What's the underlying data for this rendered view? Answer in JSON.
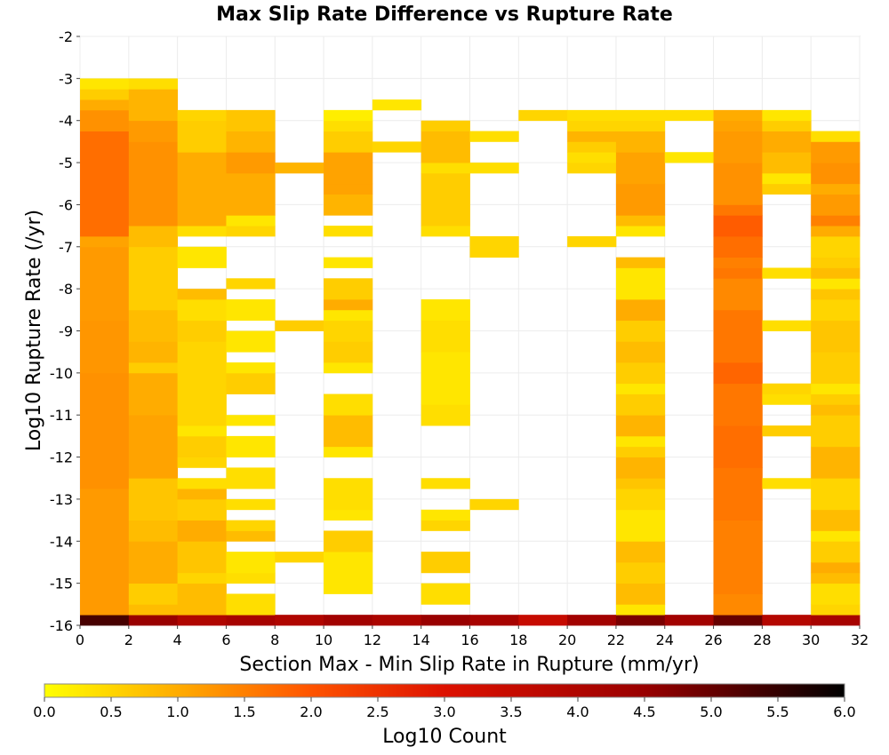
{
  "chart_data": {
    "type": "heatmap",
    "title": "Max Slip Rate Difference vs Rupture Rate",
    "xlabel": "Section Max - Min Slip Rate in Rupture (mm/yr)",
    "ylabel": "Log10 Rupture Rate (/yr)",
    "xlim": [
      0,
      32
    ],
    "ylim": [
      -16,
      -2
    ],
    "x_bin_width": 2,
    "y_bin_height": 0.25,
    "x_ticks": [
      "0",
      "2",
      "4",
      "6",
      "8",
      "10",
      "12",
      "14",
      "16",
      "18",
      "20",
      "22",
      "24",
      "26",
      "28",
      "30",
      "32"
    ],
    "y_ticks": [
      "-2",
      "-3",
      "-4",
      "-5",
      "-6",
      "-7",
      "-8",
      "-9",
      "-10",
      "-11",
      "-12",
      "-13",
      "-14",
      "-15",
      "-16"
    ],
    "grid": true,
    "colorbar": {
      "label": "Log10 Count",
      "range": [
        0,
        6
      ],
      "ticks": [
        "0.0",
        "0.5",
        "1.0",
        "1.5",
        "2.0",
        "2.5",
        "3.0",
        "3.5",
        "4.0",
        "4.5",
        "5.0",
        "5.5",
        "6.0"
      ],
      "colormap": [
        "#ffff00",
        "#ffa500",
        "#ff5500",
        "#dd1100",
        "#990000",
        "#000000"
      ]
    },
    "cells_format": "each column: x bin start (mm/yr) then runs of [y_start, y_end, log10_count]",
    "columns": [
      {
        "x": 0,
        "runs": [
          [
            -16,
            -15.75,
            5.3
          ],
          [
            -15.75,
            -13.75,
            1.2
          ],
          [
            -13.75,
            -12.75,
            1.2
          ],
          [
            -12.75,
            -10,
            1.3
          ],
          [
            -10,
            -8.75,
            1.25
          ],
          [
            -8.75,
            -7,
            1.2
          ],
          [
            -7,
            -6.75,
            1.1
          ],
          [
            -6.75,
            -4.25,
            1.7
          ],
          [
            -4.25,
            -3.75,
            1.3
          ],
          [
            -3.75,
            -3.5,
            1.0
          ],
          [
            -3.5,
            -3.25,
            0.6
          ],
          [
            -3.25,
            -3,
            0.3
          ]
        ]
      },
      {
        "x": 2,
        "runs": [
          [
            -16,
            -15.75,
            4.5
          ],
          [
            -15.75,
            -15.5,
            0.8
          ],
          [
            -15.5,
            -15,
            0.6
          ],
          [
            -15,
            -14,
            1.0
          ],
          [
            -14,
            -13.5,
            0.8
          ],
          [
            -13.5,
            -12.5,
            0.7
          ],
          [
            -12.5,
            -11,
            1.1
          ],
          [
            -11,
            -10,
            1.0
          ],
          [
            -10,
            -9.75,
            0.6
          ],
          [
            -9.75,
            -9.25,
            0.9
          ],
          [
            -9.25,
            -8.5,
            0.8
          ],
          [
            -8.5,
            -7,
            0.6
          ],
          [
            -7,
            -6.5,
            0.8
          ],
          [
            -6.5,
            -4.5,
            1.3
          ],
          [
            -4.5,
            -4,
            1.2
          ],
          [
            -4,
            -3.25,
            0.9
          ],
          [
            -3.25,
            -3,
            0.4
          ]
        ]
      },
      {
        "x": 4,
        "runs": [
          [
            -16,
            -15.75,
            4.0
          ],
          [
            -15.75,
            -15,
            0.8
          ],
          [
            -15,
            -14.75,
            0.5
          ],
          [
            -14.75,
            -14,
            0.7
          ],
          [
            -14,
            -13.5,
            1.0
          ],
          [
            -13.5,
            -13,
            0.6
          ],
          [
            -13,
            -12.75,
            0.9
          ],
          [
            -12.75,
            -12.5,
            0.4
          ],
          [
            -12.25,
            -12,
            0.5
          ],
          [
            -12,
            -11.5,
            0.6
          ],
          [
            -11.5,
            -11.25,
            0.3
          ],
          [
            -11.25,
            -10,
            0.5
          ],
          [
            -10,
            -9.25,
            0.5
          ],
          [
            -9.25,
            -8.75,
            0.6
          ],
          [
            -8.75,
            -8.25,
            0.4
          ],
          [
            -8.25,
            -8,
            0.8
          ],
          [
            -7.5,
            -7,
            0.3
          ],
          [
            -6.75,
            -6.5,
            0.4
          ],
          [
            -6.5,
            -4.75,
            1.0
          ],
          [
            -4.75,
            -4,
            0.6
          ],
          [
            -4,
            -3.75,
            0.5
          ]
        ]
      },
      {
        "x": 6,
        "runs": [
          [
            -16,
            -15.75,
            4.2
          ],
          [
            -15.75,
            -15.25,
            0.4
          ],
          [
            -15,
            -14.75,
            0.4
          ],
          [
            -14.75,
            -14.25,
            0.3
          ],
          [
            -14,
            -13.75,
            0.8
          ],
          [
            -13.75,
            -13.5,
            0.5
          ],
          [
            -13.25,
            -13,
            0.4
          ],
          [
            -12.75,
            -12.25,
            0.4
          ],
          [
            -12,
            -11.5,
            0.3
          ],
          [
            -11.25,
            -11,
            0.3
          ],
          [
            -10.5,
            -10,
            0.6
          ],
          [
            -10,
            -9.75,
            0.3
          ],
          [
            -9.5,
            -9,
            0.3
          ],
          [
            -8.75,
            -8.25,
            0.3
          ],
          [
            -8,
            -7.75,
            0.5
          ],
          [
            -6.75,
            -6.5,
            0.5
          ],
          [
            -6.5,
            -6.25,
            0.3
          ],
          [
            -6.25,
            -5.25,
            1.0
          ],
          [
            -5.25,
            -4.75,
            1.2
          ],
          [
            -4.75,
            -4.25,
            0.9
          ],
          [
            -4.25,
            -3.75,
            0.7
          ]
        ]
      },
      {
        "x": 8,
        "runs": [
          [
            -16,
            -15.75,
            4.0
          ],
          [
            -14.5,
            -14.25,
            0.5
          ],
          [
            -9,
            -8.75,
            0.6
          ],
          [
            -5.25,
            -5,
            0.9
          ]
        ]
      },
      {
        "x": 10,
        "runs": [
          [
            -16,
            -15.75,
            4.3
          ],
          [
            -15.25,
            -14.25,
            0.3
          ],
          [
            -14.25,
            -13.75,
            0.6
          ],
          [
            -13.5,
            -13.25,
            0.3
          ],
          [
            -13.25,
            -12.5,
            0.4
          ],
          [
            -12,
            -11.75,
            0.3
          ],
          [
            -11.75,
            -11,
            0.8
          ],
          [
            -11,
            -10.5,
            0.4
          ],
          [
            -10,
            -9.75,
            0.3
          ],
          [
            -9.75,
            -9.25,
            0.6
          ],
          [
            -9.25,
            -8.75,
            0.5
          ],
          [
            -8.75,
            -8.5,
            0.3
          ],
          [
            -8.5,
            -8.25,
            1.0
          ],
          [
            -8.25,
            -7.75,
            0.6
          ],
          [
            -7.5,
            -7.25,
            0.3
          ],
          [
            -6.75,
            -6.5,
            0.4
          ],
          [
            -6.25,
            -5.75,
            0.9
          ],
          [
            -5.75,
            -5.5,
            1.1
          ],
          [
            -5.5,
            -4.75,
            1.1
          ],
          [
            -4.75,
            -4.25,
            0.6
          ],
          [
            -4.25,
            -4,
            0.4
          ],
          [
            -4,
            -3.75,
            0.2
          ]
        ]
      },
      {
        "x": 12,
        "runs": [
          [
            -16,
            -15.75,
            4.1
          ],
          [
            -4.75,
            -4.5,
            0.5
          ],
          [
            -3.75,
            -3.5,
            0.3
          ]
        ]
      },
      {
        "x": 14,
        "runs": [
          [
            -16,
            -15.75,
            4.5
          ],
          [
            -15.5,
            -15,
            0.4
          ],
          [
            -14.75,
            -14.25,
            0.6
          ],
          [
            -13.75,
            -13.5,
            0.5
          ],
          [
            -13.5,
            -13.25,
            0.3
          ],
          [
            -12.75,
            -12.5,
            0.4
          ],
          [
            -11.25,
            -10.75,
            0.4
          ],
          [
            -10.75,
            -9.5,
            0.3
          ],
          [
            -9.5,
            -8.75,
            0.4
          ],
          [
            -8.75,
            -8.25,
            0.3
          ],
          [
            -6.75,
            -6.5,
            0.4
          ],
          [
            -6.5,
            -5.25,
            0.6
          ],
          [
            -5.25,
            -5,
            0.4
          ],
          [
            -5,
            -4.25,
            0.8
          ],
          [
            -4.25,
            -4,
            0.6
          ]
        ]
      },
      {
        "x": 16,
        "runs": [
          [
            -16,
            -15.75,
            4.2
          ],
          [
            -13.25,
            -13,
            0.5
          ],
          [
            -7.25,
            -6.75,
            0.5
          ],
          [
            -5.25,
            -5,
            0.4
          ],
          [
            -4.5,
            -4.25,
            0.4
          ]
        ]
      },
      {
        "x": 18,
        "runs": [
          [
            -16,
            -15.75,
            3.5
          ],
          [
            -4,
            -3.75,
            0.5
          ]
        ]
      },
      {
        "x": 20,
        "runs": [
          [
            -16,
            -15.75,
            4.3
          ],
          [
            -7,
            -6.75,
            0.5
          ],
          [
            -5.25,
            -5,
            0.5
          ],
          [
            -5,
            -4.75,
            0.4
          ],
          [
            -4.75,
            -4.5,
            0.6
          ],
          [
            -4.5,
            -4.25,
            0.9
          ],
          [
            -4.25,
            -4,
            0.5
          ],
          [
            -4,
            -3.75,
            0.4
          ]
        ]
      },
      {
        "x": 22,
        "runs": [
          [
            -16,
            -15.75,
            4.8
          ],
          [
            -15.75,
            -15.5,
            0.3
          ],
          [
            -15.5,
            -15,
            0.8
          ],
          [
            -15,
            -14.5,
            0.6
          ],
          [
            -14.5,
            -14,
            0.8
          ],
          [
            -14,
            -13.25,
            0.3
          ],
          [
            -13.25,
            -12.75,
            0.5
          ],
          [
            -12.75,
            -12.5,
            0.7
          ],
          [
            -12.5,
            -12,
            0.9
          ],
          [
            -12,
            -11.75,
            0.6
          ],
          [
            -11.75,
            -11.5,
            0.3
          ],
          [
            -11.5,
            -11,
            0.9
          ],
          [
            -11,
            -10.5,
            0.6
          ],
          [
            -10.5,
            -10.25,
            0.3
          ],
          [
            -10.25,
            -9.75,
            0.6
          ],
          [
            -9.75,
            -9.25,
            0.8
          ],
          [
            -9.25,
            -8.75,
            0.6
          ],
          [
            -8.75,
            -8.25,
            1.0
          ],
          [
            -8.25,
            -7.5,
            0.3
          ],
          [
            -7.5,
            -7.25,
            0.8
          ],
          [
            -6.75,
            -6.5,
            0.3
          ],
          [
            -6.5,
            -6.25,
            0.8
          ],
          [
            -6.25,
            -5.5,
            1.2
          ],
          [
            -5.5,
            -4.75,
            1.1
          ],
          [
            -4.75,
            -4.25,
            0.9
          ],
          [
            -4.25,
            -4,
            0.5
          ],
          [
            -4,
            -3.75,
            0.4
          ]
        ]
      },
      {
        "x": 24,
        "runs": [
          [
            -16,
            -15.75,
            4.3
          ],
          [
            -5,
            -4.75,
            0.3
          ],
          [
            -4,
            -3.75,
            0.4
          ]
        ]
      },
      {
        "x": 26,
        "runs": [
          [
            -16,
            -15.75,
            5.0
          ],
          [
            -15.75,
            -15.25,
            1.4
          ],
          [
            -15.25,
            -14.5,
            1.5
          ],
          [
            -14.5,
            -13.5,
            1.5
          ],
          [
            -13.5,
            -12.25,
            1.6
          ],
          [
            -12.25,
            -11.25,
            1.7
          ],
          [
            -11.25,
            -10.25,
            1.6
          ],
          [
            -10.25,
            -9.75,
            1.8
          ],
          [
            -9.75,
            -8.5,
            1.6
          ],
          [
            -8.5,
            -7.75,
            1.4
          ],
          [
            -7.75,
            -7.5,
            1.6
          ],
          [
            -7.5,
            -7.25,
            1.5
          ],
          [
            -7.25,
            -6.75,
            1.7
          ],
          [
            -6.75,
            -6.25,
            1.9
          ],
          [
            -6.25,
            -6,
            1.6
          ],
          [
            -6,
            -5,
            1.3
          ],
          [
            -5,
            -4.25,
            1.2
          ],
          [
            -4.25,
            -4,
            1.1
          ],
          [
            -4,
            -3.75,
            1.0
          ]
        ]
      },
      {
        "x": 28,
        "runs": [
          [
            -16,
            -15.75,
            3.9
          ],
          [
            -12.75,
            -12.5,
            0.4
          ],
          [
            -11.5,
            -11.25,
            0.6
          ],
          [
            -10.75,
            -10.5,
            0.4
          ],
          [
            -10.5,
            -10.25,
            0.5
          ],
          [
            -9,
            -8.75,
            0.4
          ],
          [
            -7.75,
            -7.5,
            0.4
          ],
          [
            -5.75,
            -5.5,
            0.6
          ],
          [
            -5.5,
            -5.25,
            0.3
          ],
          [
            -5.25,
            -4.75,
            0.8
          ],
          [
            -4.75,
            -4.25,
            1.0
          ],
          [
            -4.25,
            -4,
            0.6
          ],
          [
            -4,
            -3.75,
            0.3
          ]
        ]
      },
      {
        "x": 30,
        "runs": [
          [
            -16,
            -15.75,
            4.2
          ],
          [
            -15.75,
            -15.5,
            0.5
          ],
          [
            -15.5,
            -15,
            0.4
          ],
          [
            -15,
            -14.75,
            0.8
          ],
          [
            -14.75,
            -14.5,
            1.0
          ],
          [
            -14.5,
            -14,
            0.6
          ],
          [
            -14,
            -13.75,
            0.3
          ],
          [
            -13.75,
            -13.25,
            0.8
          ],
          [
            -13.25,
            -12.5,
            0.5
          ],
          [
            -12.5,
            -11.75,
            0.9
          ],
          [
            -11.75,
            -11,
            0.6
          ],
          [
            -11,
            -10.75,
            0.8
          ],
          [
            -10.75,
            -10.5,
            0.6
          ],
          [
            -10.5,
            -10.25,
            0.3
          ],
          [
            -10.25,
            -9.5,
            0.6
          ],
          [
            -9.5,
            -8.75,
            0.7
          ],
          [
            -8.75,
            -8.25,
            0.5
          ],
          [
            -8.25,
            -8,
            0.7
          ],
          [
            -8,
            -7.75,
            0.3
          ],
          [
            -7.75,
            -7.5,
            0.8
          ],
          [
            -7.5,
            -7.25,
            0.6
          ],
          [
            -7.25,
            -6.75,
            0.5
          ],
          [
            -6.75,
            -6.5,
            1.0
          ],
          [
            -6.5,
            -6.25,
            1.5
          ],
          [
            -6.25,
            -5.75,
            1.2
          ],
          [
            -5.75,
            -5.5,
            1.0
          ],
          [
            -5.5,
            -5,
            1.3
          ],
          [
            -5,
            -4.5,
            1.2
          ],
          [
            -4.5,
            -4.25,
            0.4
          ]
        ]
      }
    ]
  }
}
